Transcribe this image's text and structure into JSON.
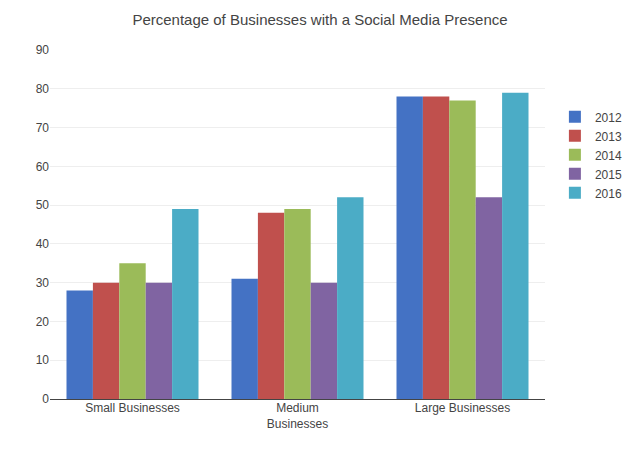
{
  "chart_data": {
    "type": "bar",
    "title": "Percentage of Businesses with a Social Media Presence",
    "categories": [
      "Small Businesses",
      "Medium\nBusinesses",
      "Large Businesses"
    ],
    "series": [
      {
        "name": "2012",
        "color": "#4472C4",
        "values": [
          28,
          31,
          78
        ]
      },
      {
        "name": "2013",
        "color": "#C0504D",
        "values": [
          30,
          48,
          78
        ]
      },
      {
        "name": "2014",
        "color": "#9BBB59",
        "values": [
          35,
          49,
          77
        ]
      },
      {
        "name": "2015",
        "color": "#8064A2",
        "values": [
          30,
          30,
          52
        ]
      },
      {
        "name": "2016",
        "color": "#4BACC6",
        "values": [
          49,
          52,
          79
        ]
      }
    ],
    "ylim": [
      0,
      90
    ],
    "yticks": [
      0,
      10,
      20,
      30,
      40,
      50,
      60,
      70,
      80,
      90
    ],
    "grid": true,
    "legend": "right"
  }
}
